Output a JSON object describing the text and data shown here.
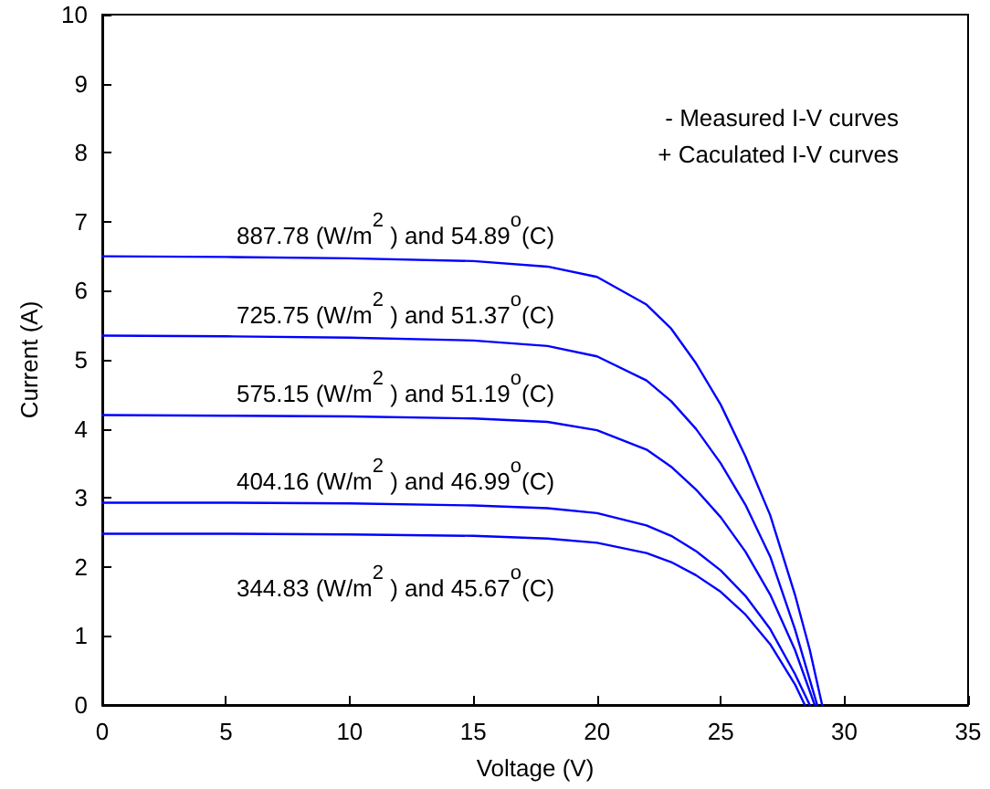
{
  "chart_data": {
    "type": "line",
    "xlabel": "Voltage (V)",
    "ylabel": "Current (A)",
    "xlim": [
      0,
      35
    ],
    "ylim": [
      0,
      10
    ],
    "xticks": [
      0,
      5,
      10,
      15,
      20,
      25,
      30,
      35
    ],
    "yticks": [
      0,
      1,
      2,
      3,
      4,
      5,
      6,
      7,
      8,
      9,
      10
    ],
    "grid": false,
    "marker": "none",
    "line_style": "solid",
    "series": [
      {
        "color": "#0000ff",
        "x": [
          0,
          5,
          10,
          15,
          18,
          20,
          22,
          23,
          24,
          25,
          26,
          27,
          28,
          28.6,
          29.1
        ],
        "values": [
          6.5,
          6.49,
          6.47,
          6.43,
          6.35,
          6.2,
          5.8,
          5.45,
          4.95,
          4.35,
          3.6,
          2.75,
          1.6,
          0.8,
          0
        ]
      },
      {
        "color": "#0000ff",
        "x": [
          0,
          5,
          10,
          15,
          18,
          20,
          22,
          23,
          24,
          25,
          26,
          27,
          28,
          28.9
        ],
        "values": [
          5.35,
          5.34,
          5.32,
          5.28,
          5.2,
          5.05,
          4.7,
          4.4,
          4.0,
          3.5,
          2.9,
          2.15,
          1.1,
          0
        ]
      },
      {
        "color": "#0000ff",
        "x": [
          0,
          5,
          10,
          15,
          18,
          20,
          22,
          23,
          24,
          25,
          26,
          27,
          28,
          28.8
        ],
        "values": [
          4.2,
          4.19,
          4.18,
          4.15,
          4.1,
          3.98,
          3.7,
          3.45,
          3.12,
          2.72,
          2.22,
          1.6,
          0.8,
          0
        ]
      },
      {
        "color": "#0000ff",
        "x": [
          0,
          5,
          10,
          15,
          18,
          20,
          22,
          23,
          24,
          25,
          26,
          27,
          28,
          28.6
        ],
        "values": [
          2.93,
          2.93,
          2.92,
          2.89,
          2.85,
          2.78,
          2.6,
          2.45,
          2.23,
          1.95,
          1.58,
          1.1,
          0.45,
          0
        ]
      },
      {
        "color": "#0000ff",
        "x": [
          0,
          5,
          10,
          15,
          18,
          20,
          22,
          23,
          24,
          25,
          26,
          27,
          28,
          28.4
        ],
        "values": [
          2.48,
          2.48,
          2.47,
          2.45,
          2.41,
          2.35,
          2.2,
          2.07,
          1.88,
          1.64,
          1.31,
          0.88,
          0.3,
          0
        ]
      }
    ],
    "annotations": [
      "887.78 (W/m$^{2}$ ) and 54.89$^{o}$(C)",
      "725.75 (W/m$^{2}$ ) and 51.37$^{o}$(C)",
      "575.15 (W/m$^{2}$ ) and 51.19$^{o}$(C)",
      "404.16 (W/m$^{2}$ ) and 46.99$^{o}$(C)",
      "344.83 (W/m$^{2}$ ) and 45.67$^{o}$(C)",
      "- Measured I-V curves",
      "+ Caculated I-V curves"
    ]
  }
}
